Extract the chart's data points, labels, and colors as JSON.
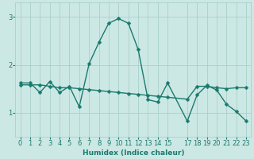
{
  "xlabel": "Humidex (Indice chaleur)",
  "ylabel": "",
  "bg_color": "#cce8e4",
  "line_color": "#1a7a6e",
  "grid_color": "#aacfcb",
  "xlim": [
    -0.5,
    23.5
  ],
  "ylim": [
    0.5,
    3.3
  ],
  "yticks": [
    1,
    2,
    3
  ],
  "xtick_vals": [
    0,
    1,
    2,
    3,
    4,
    5,
    6,
    7,
    8,
    9,
    10,
    11,
    12,
    13,
    14,
    15,
    17,
    18,
    19,
    20,
    21,
    22,
    23
  ],
  "xtick_labels": [
    "0",
    "1",
    "2",
    "3",
    "4",
    "5",
    "6",
    "7",
    "8",
    "9",
    "10",
    "11",
    "12",
    "13",
    "14",
    "15",
    "17",
    "18",
    "19",
    "20",
    "21",
    "22",
    "23"
  ],
  "series1_x": [
    0,
    1,
    2,
    3,
    4,
    5,
    6,
    7,
    8,
    9,
    10,
    11,
    12,
    13,
    14,
    15,
    17,
    18,
    19,
    20,
    21,
    22,
    23
  ],
  "series1_y": [
    1.62,
    1.62,
    1.42,
    1.65,
    1.42,
    1.55,
    1.12,
    2.02,
    2.47,
    2.87,
    2.97,
    2.87,
    2.32,
    1.27,
    1.22,
    1.62,
    0.82,
    1.37,
    1.57,
    1.47,
    1.17,
    1.02,
    0.82
  ],
  "series2_x": [
    0,
    1,
    2,
    3,
    4,
    5,
    6,
    7,
    8,
    9,
    10,
    11,
    12,
    13,
    14,
    15,
    17,
    18,
    19,
    20,
    21,
    22,
    23
  ],
  "series2_y": [
    1.58,
    1.58,
    1.58,
    1.55,
    1.52,
    1.52,
    1.5,
    1.48,
    1.46,
    1.44,
    1.42,
    1.4,
    1.38,
    1.36,
    1.34,
    1.32,
    1.28,
    1.55,
    1.55,
    1.52,
    1.5,
    1.52,
    1.52
  ],
  "marker_size": 2.5,
  "line_width": 1.0
}
